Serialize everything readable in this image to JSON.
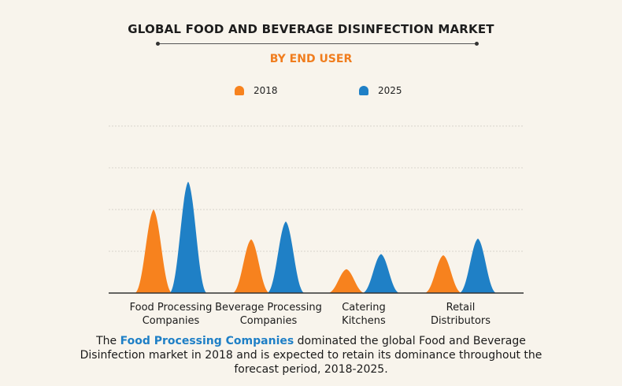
{
  "title": "GLOBAL FOOD AND BEVERAGE DISINFECTION MARKET",
  "subtitle": "BY END USER",
  "caption": {
    "prefix": "The ",
    "highlight": "Food Processing Companies",
    "suffix": " dominated the global Food and Beverage Disinfection market in 2018 and is expected to retain its dominance throughout the forecast period, 2018-2025."
  },
  "colors": {
    "s2018": "#f7821e",
    "s2025": "#1f80c6",
    "grid": "#d8d4cc",
    "axis": "#333333"
  },
  "chart_data": {
    "type": "area",
    "categories": [
      [
        "Food Processing",
        "Companies"
      ],
      [
        "Beverage Processing",
        "Companies"
      ],
      [
        "Catering",
        "Kitchens"
      ],
      [
        "Retail",
        "Distributors"
      ]
    ],
    "series": [
      {
        "name": "2018",
        "values": [
          2.1,
          1.35,
          0.6,
          0.95
        ]
      },
      {
        "name": "2025",
        "values": [
          2.8,
          1.8,
          0.98,
          1.37
        ]
      }
    ],
    "ylim": [
      0,
      4.2
    ],
    "grid": true,
    "legend": "top-center"
  }
}
